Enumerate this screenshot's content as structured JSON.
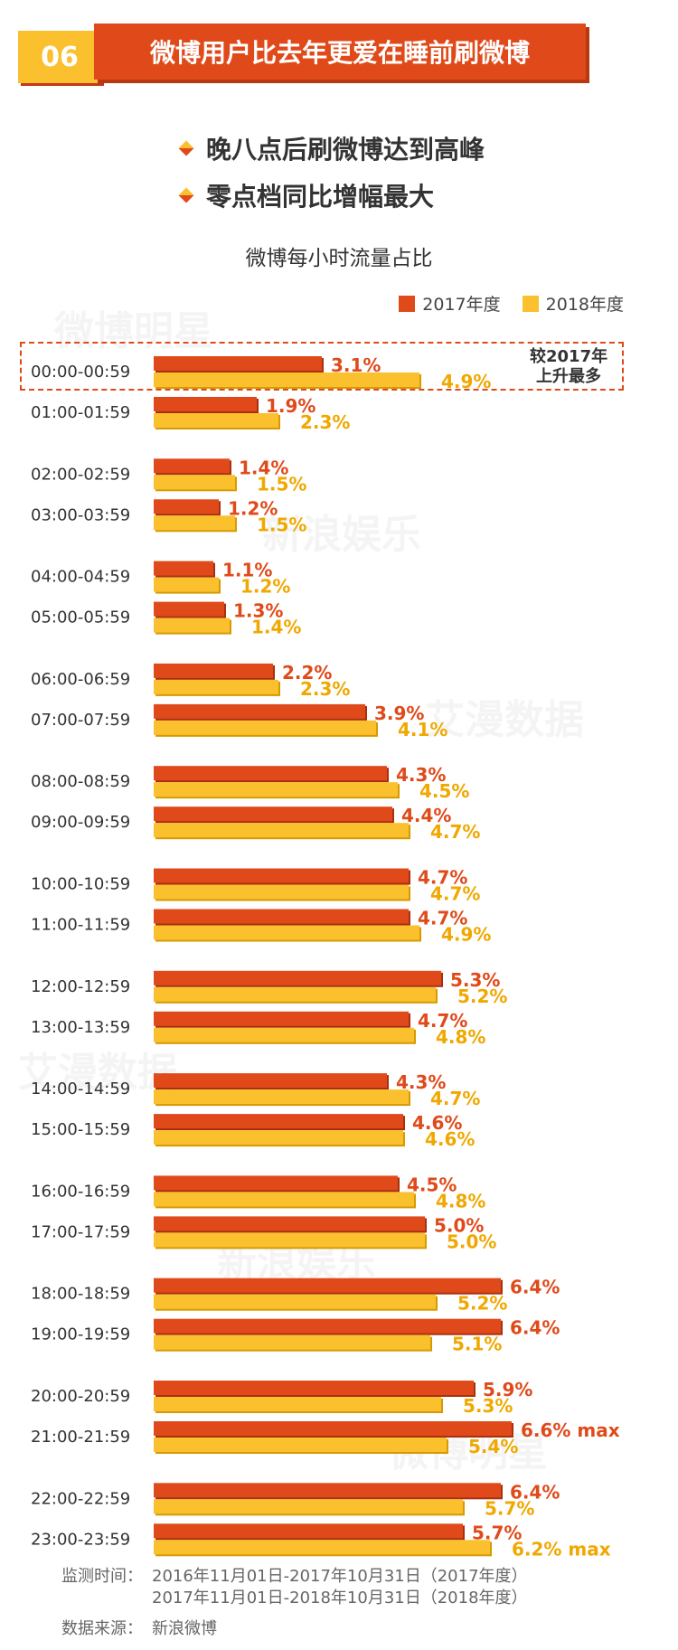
{
  "header": {
    "number": "06",
    "title": "微博用户比去年更爱在睡前刷微博"
  },
  "bullets": [
    "晚八点后刷微博达到高峰",
    "零点档同比增幅最大"
  ],
  "watermarks": [
    "微博明星",
    "新浪娱乐",
    "艾漫数据",
    "艾漫数据",
    "新浪娱乐",
    "微博明星"
  ],
  "colors": {
    "series_2017": "#e04a1a",
    "series_2018": "#fbc02d",
    "label_2018": "#f0a800"
  },
  "chart_data": {
    "type": "bar",
    "orientation": "horizontal",
    "title": "微博每小时流量占比",
    "legend_position": "top-right",
    "categories": [
      "00:00-00:59",
      "01:00-01:59",
      "02:00-02:59",
      "03:00-03:59",
      "04:00-04:59",
      "05:00-05:59",
      "06:00-06:59",
      "07:00-07:59",
      "08:00-08:59",
      "09:00-09:59",
      "10:00-10:59",
      "11:00-11:59",
      "12:00-12:59",
      "13:00-13:59",
      "14:00-14:59",
      "15:00-15:59",
      "16:00-16:59",
      "17:00-17:59",
      "18:00-18:59",
      "19:00-19:59",
      "20:00-20:59",
      "21:00-21:59",
      "22:00-22:59",
      "23:00-23:59"
    ],
    "series": [
      {
        "name": "2017年度",
        "values": [
          3.1,
          1.9,
          1.4,
          1.2,
          1.1,
          1.3,
          2.2,
          3.9,
          4.3,
          4.4,
          4.7,
          4.7,
          5.3,
          4.7,
          4.3,
          4.6,
          4.5,
          5.0,
          6.4,
          6.4,
          5.9,
          6.6,
          6.4,
          5.7
        ]
      },
      {
        "name": "2018年度",
        "values": [
          4.9,
          2.3,
          1.5,
          1.5,
          1.2,
          1.4,
          2.3,
          4.1,
          4.5,
          4.7,
          4.7,
          4.9,
          5.2,
          4.8,
          4.7,
          4.6,
          4.8,
          5.0,
          5.2,
          5.1,
          5.3,
          5.4,
          5.7,
          6.2
        ]
      }
    ],
    "value_format": "%",
    "max_tag": "max",
    "max_points": [
      {
        "series": 0,
        "index": 21
      },
      {
        "series": 1,
        "index": 23
      }
    ],
    "annotation": {
      "line1": "较2017年",
      "line2": "上升最多",
      "category": "00:00-00:59"
    }
  },
  "footer": {
    "period_label": "监测时间：",
    "period_1": "2016年11月01日-2017年10月31日（2017年度）",
    "period_2": "2017年11月01日-2018年10月31日（2018年度）",
    "source_label": "数据来源：",
    "source": "新浪微博"
  }
}
